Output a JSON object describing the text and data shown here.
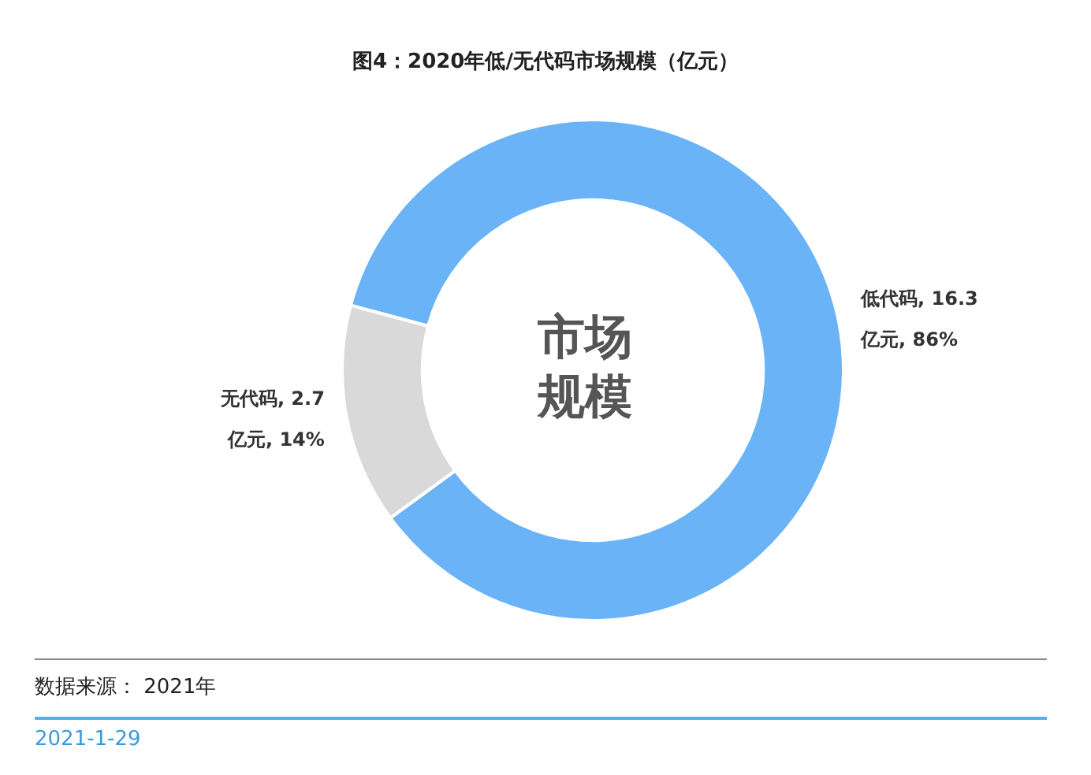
{
  "chart_data": {
    "type": "donut",
    "title": "图4：2020年低/无代码市场规模（亿元）",
    "categories": [
      "低代码",
      "无代码"
    ],
    "values": [
      16.3,
      2.7
    ],
    "colors": [
      "#6ab3f7",
      "#d9d9d9"
    ],
    "value_labels": [
      "16.3 亿元, 86%",
      "2.7 亿元, 14%"
    ],
    "legend": false,
    "annotations": [
      "市场规模",
      "数据来源： 2021年",
      "2021-1-29"
    ]
  }
}
